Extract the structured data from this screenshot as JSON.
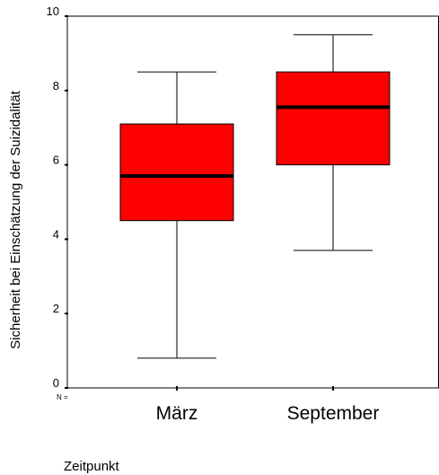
{
  "chart_data": {
    "type": "boxplot",
    "title": "",
    "xlabel": "Zeitpunkt",
    "ylabel": "Sicherheit bei Einschätzung der Suizidalität",
    "n_label": "N =",
    "ylim": [
      0,
      10
    ],
    "yticks": [
      0,
      2,
      4,
      6,
      8,
      10
    ],
    "categories": [
      "März",
      "September"
    ],
    "boxes": [
      {
        "category": "März",
        "min": 0.8,
        "q1": 4.5,
        "median": 5.7,
        "q3": 7.1,
        "max": 8.5
      },
      {
        "category": "September",
        "min": 3.7,
        "q1": 6.0,
        "median": 7.55,
        "q3": 8.5,
        "max": 9.5
      }
    ],
    "box_color": "#ff0000",
    "grid": false,
    "legend": "none"
  }
}
